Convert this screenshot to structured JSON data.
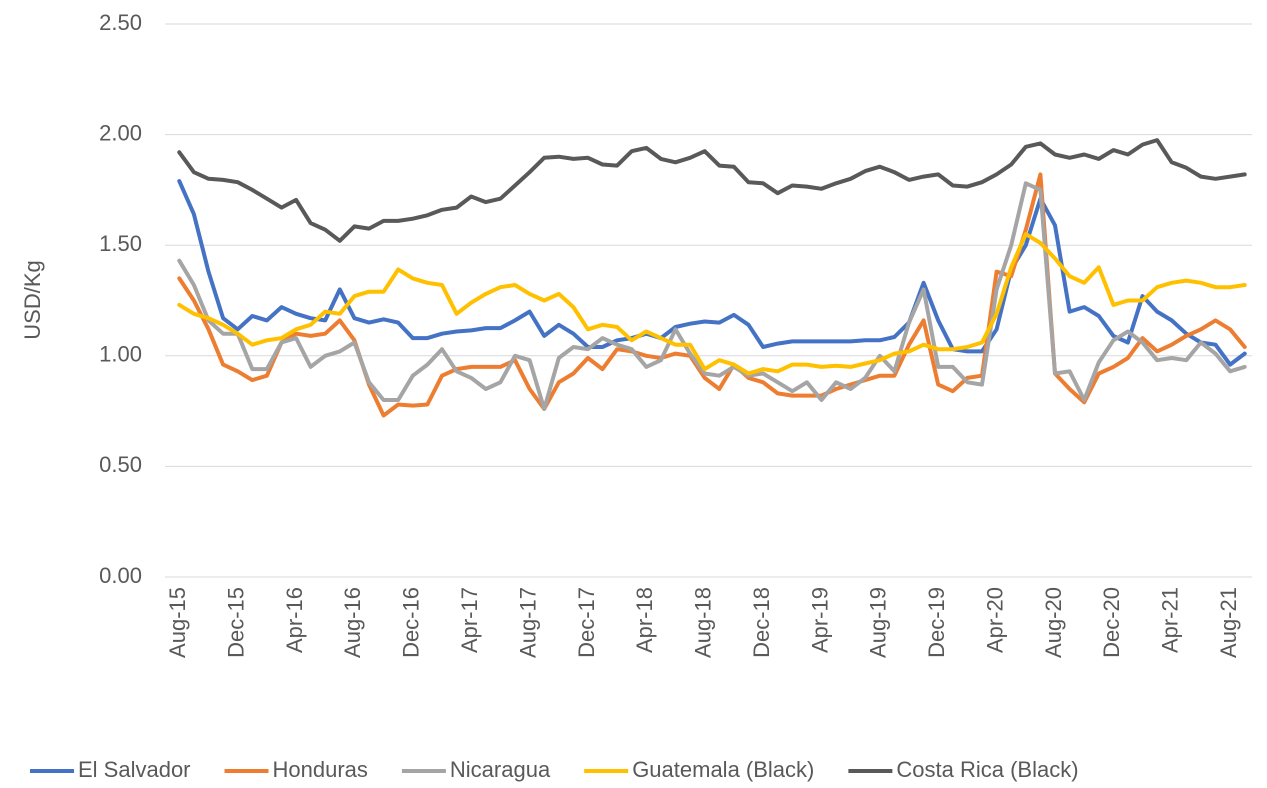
{
  "chart_data": {
    "type": "line",
    "y_label": "USD/Kg",
    "categories": [
      "Aug-15",
      null,
      null,
      null,
      "Dec-15",
      null,
      null,
      null,
      "Apr-16",
      null,
      null,
      null,
      "Aug-16",
      null,
      null,
      null,
      "Dec-16",
      null,
      null,
      null,
      "Apr-17",
      null,
      null,
      null,
      "Aug-17",
      null,
      null,
      null,
      "Dec-17",
      null,
      null,
      null,
      "Apr-18",
      null,
      null,
      null,
      "Aug-18",
      null,
      null,
      null,
      "Dec-18",
      null,
      null,
      null,
      "Apr-19",
      null,
      null,
      null,
      "Aug-19",
      null,
      null,
      null,
      "Dec-19",
      null,
      null,
      null,
      "Apr-20",
      null,
      null,
      null,
      "Aug-20",
      null,
      null,
      null,
      "Dec-20",
      null,
      null,
      null,
      "Apr-21",
      null,
      null,
      null,
      "Aug-21",
      null
    ],
    "ylim": [
      0,
      2.5
    ],
    "yticks": [
      {
        "value": 0,
        "label": "0.00"
      },
      {
        "value": 0.5,
        "label": "0.50"
      },
      {
        "value": 1,
        "label": "1.00"
      },
      {
        "value": 1.5,
        "label": "1.50"
      },
      {
        "value": 2,
        "label": "2.00"
      },
      {
        "value": 2.5,
        "label": "2.50"
      }
    ],
    "grid": true,
    "legend": "bottom",
    "series": [
      {
        "name": "El Salvador",
        "color": "#4472c4",
        "values": [
          1.79,
          1.64,
          1.38,
          1.17,
          1.12,
          1.18,
          1.16,
          1.22,
          1.19,
          1.17,
          1.16,
          1.3,
          1.17,
          1.15,
          1.165,
          1.15,
          1.08,
          1.08,
          1.1,
          1.11,
          1.115,
          1.125,
          1.125,
          1.16,
          1.2,
          1.09,
          1.14,
          1.1,
          1.04,
          1.04,
          1.07,
          1.08,
          1.1,
          1.08,
          1.13,
          1.145,
          1.155,
          1.15,
          1.185,
          1.14,
          1.04,
          1.055,
          1.065,
          1.065,
          1.065,
          1.065,
          1.065,
          1.07,
          1.07,
          1.085,
          1.15,
          1.33,
          1.16,
          1.03,
          1.02,
          1.02,
          1.12,
          1.39,
          1.5,
          1.71,
          1.59,
          1.2,
          1.22,
          1.18,
          1.09,
          1.06,
          1.27,
          1.2,
          1.16,
          1.1,
          1.06,
          1.05,
          0.96,
          1.01
        ]
      },
      {
        "name": "Honduras",
        "color": "#ed7d31",
        "values": [
          1.35,
          1.25,
          1.12,
          0.96,
          0.93,
          0.89,
          0.91,
          1.06,
          1.1,
          1.09,
          1.1,
          1.16,
          1.07,
          0.87,
          0.73,
          0.78,
          0.775,
          0.78,
          0.91,
          0.94,
          0.95,
          0.95,
          0.95,
          0.98,
          0.85,
          0.76,
          0.88,
          0.92,
          0.99,
          0.94,
          1.03,
          1.02,
          1.0,
          0.99,
          1.01,
          1.0,
          0.9,
          0.85,
          0.96,
          0.9,
          0.88,
          0.83,
          0.82,
          0.82,
          0.82,
          0.85,
          0.87,
          0.89,
          0.91,
          0.91,
          1.05,
          1.16,
          0.87,
          0.84,
          0.9,
          0.91,
          1.38,
          1.36,
          1.57,
          1.82,
          0.92,
          0.85,
          0.79,
          0.92,
          0.95,
          0.99,
          1.08,
          1.02,
          1.05,
          1.09,
          1.12,
          1.16,
          1.12,
          1.04
        ]
      },
      {
        "name": "Nicaragua",
        "color": "#a5a5a5",
        "values": [
          1.43,
          1.32,
          1.16,
          1.1,
          1.1,
          0.94,
          0.94,
          1.06,
          1.08,
          0.95,
          1.0,
          1.02,
          1.06,
          0.88,
          0.8,
          0.8,
          0.91,
          0.96,
          1.03,
          0.93,
          0.9,
          0.85,
          0.88,
          1.0,
          0.98,
          0.76,
          0.99,
          1.04,
          1.03,
          1.08,
          1.05,
          1.03,
          0.95,
          0.98,
          1.12,
          1.01,
          0.92,
          0.91,
          0.95,
          0.91,
          0.92,
          0.88,
          0.84,
          0.88,
          0.8,
          0.88,
          0.85,
          0.9,
          1.0,
          0.93,
          1.15,
          1.3,
          0.95,
          0.95,
          0.88,
          0.87,
          1.3,
          1.5,
          1.78,
          1.75,
          0.92,
          0.93,
          0.8,
          0.97,
          1.07,
          1.11,
          1.06,
          0.98,
          0.99,
          0.98,
          1.06,
          1.01,
          0.93,
          0.95
        ]
      },
      {
        "name": "Guatemala (Black)",
        "color": "#ffc000",
        "values": [
          1.23,
          1.19,
          1.17,
          1.14,
          1.1,
          1.05,
          1.07,
          1.08,
          1.12,
          1.14,
          1.2,
          1.19,
          1.27,
          1.29,
          1.29,
          1.39,
          1.35,
          1.33,
          1.32,
          1.19,
          1.24,
          1.28,
          1.31,
          1.32,
          1.28,
          1.25,
          1.28,
          1.22,
          1.12,
          1.14,
          1.13,
          1.07,
          1.11,
          1.08,
          1.05,
          1.05,
          0.94,
          0.98,
          0.96,
          0.92,
          0.94,
          0.93,
          0.96,
          0.96,
          0.95,
          0.955,
          0.95,
          0.965,
          0.98,
          1.01,
          1.02,
          1.05,
          1.03,
          1.03,
          1.04,
          1.06,
          1.19,
          1.4,
          1.55,
          1.51,
          1.44,
          1.36,
          1.33,
          1.4,
          1.23,
          1.25,
          1.25,
          1.31,
          1.33,
          1.34,
          1.33,
          1.31,
          1.31,
          1.32
        ]
      },
      {
        "name": "Costa Rica (Black)",
        "color": "#595959",
        "values": [
          1.92,
          1.83,
          1.8,
          1.795,
          1.785,
          1.75,
          1.71,
          1.67,
          1.705,
          1.6,
          1.57,
          1.52,
          1.585,
          1.575,
          1.61,
          1.61,
          1.62,
          1.635,
          1.66,
          1.67,
          1.72,
          1.695,
          1.71,
          1.77,
          1.83,
          1.895,
          1.9,
          1.89,
          1.895,
          1.865,
          1.86,
          1.925,
          1.94,
          1.89,
          1.875,
          1.895,
          1.925,
          1.86,
          1.855,
          1.785,
          1.78,
          1.735,
          1.77,
          1.765,
          1.755,
          1.78,
          1.8,
          1.835,
          1.855,
          1.83,
          1.795,
          1.81,
          1.82,
          1.77,
          1.765,
          1.785,
          1.82,
          1.865,
          1.945,
          1.96,
          1.91,
          1.895,
          1.91,
          1.89,
          1.93,
          1.91,
          1.955,
          1.975,
          1.875,
          1.85,
          1.81,
          1.8,
          1.81,
          1.82
        ]
      }
    ]
  }
}
